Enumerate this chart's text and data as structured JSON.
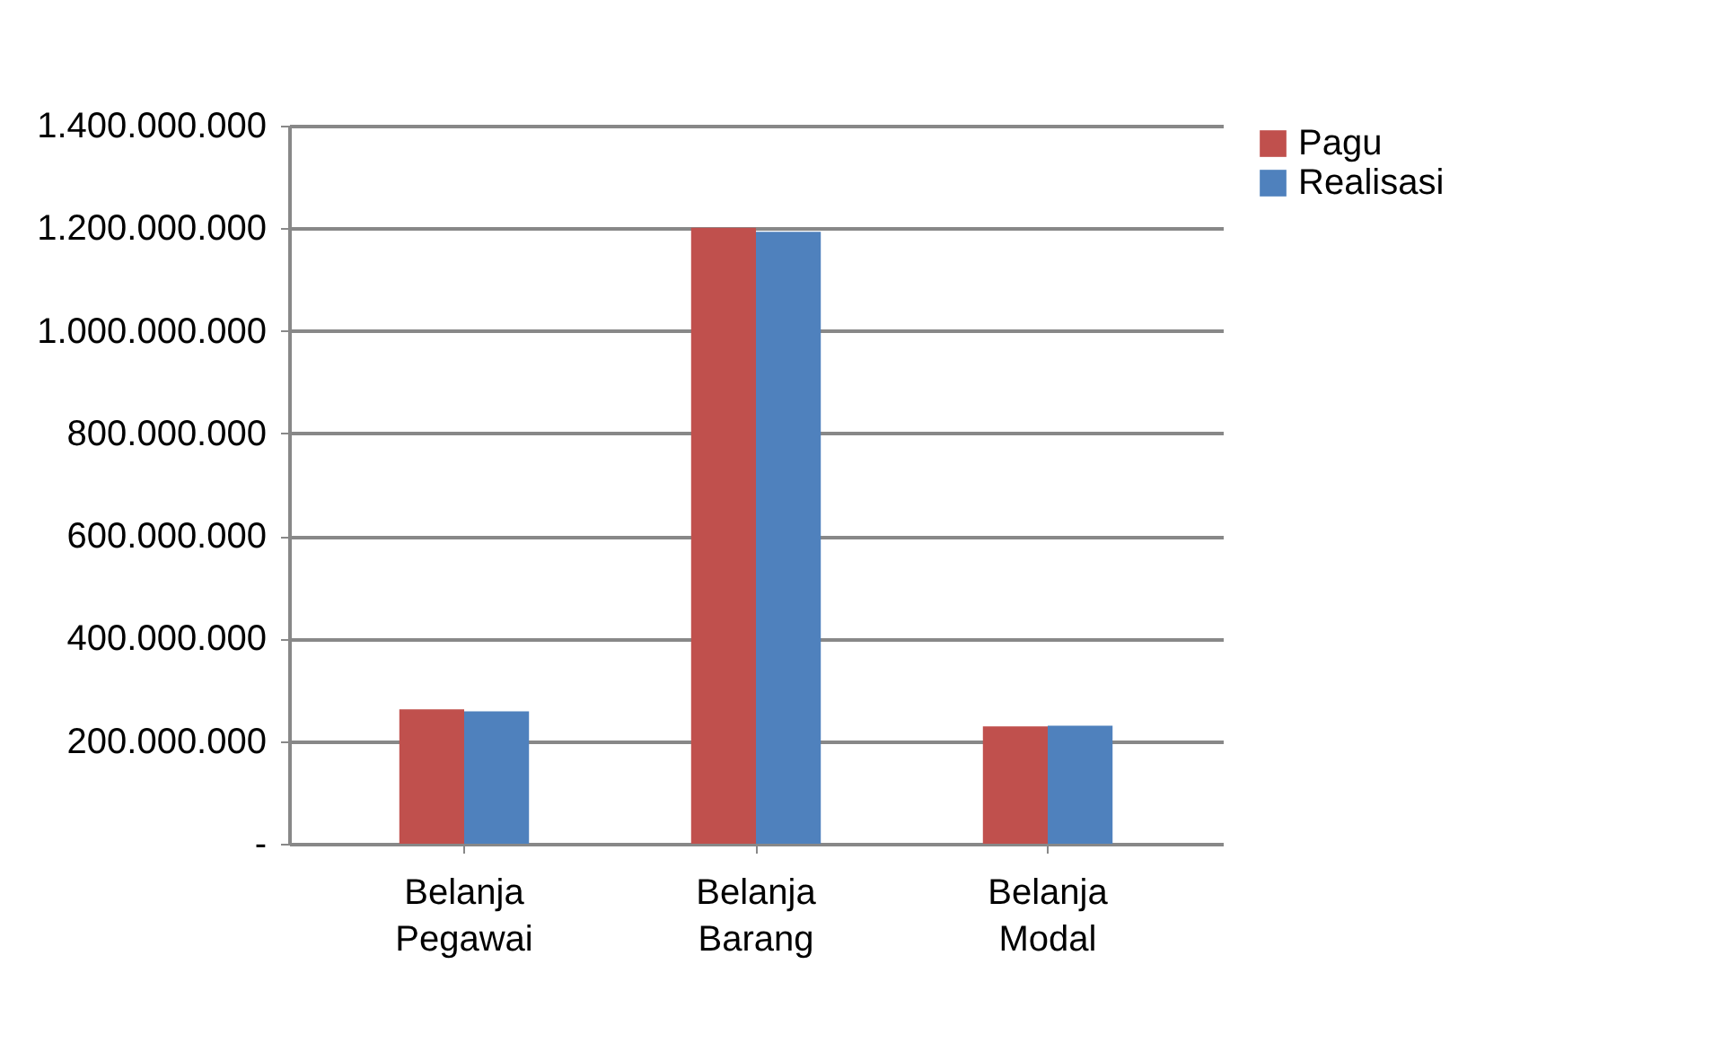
{
  "chart_data": {
    "type": "bar",
    "categories": [
      "Belanja Pegawai",
      "Belanja Barang",
      "Belanja Modal"
    ],
    "series": [
      {
        "name": "Pagu",
        "color": "#c0504d",
        "values": [
          262000000,
          1201000000,
          229000000
        ]
      },
      {
        "name": "Realisasi",
        "color": "#4f81bd",
        "values": [
          258000000,
          1193000000,
          230000000
        ]
      }
    ],
    "ylim": [
      0,
      1400000000
    ],
    "yticks": [
      {
        "value": 0,
        "label": "-"
      },
      {
        "value": 200000000,
        "label": "200.000.000"
      },
      {
        "value": 400000000,
        "label": "400.000.000"
      },
      {
        "value": 600000000,
        "label": "600.000.000"
      },
      {
        "value": 800000000,
        "label": "800.000.000"
      },
      {
        "value": 1000000000,
        "label": "1.000.000.000"
      },
      {
        "value": 1200000000,
        "label": "1.200.000.000"
      },
      {
        "value": 1400000000,
        "label": "1.400.000.000"
      }
    ],
    "grid": "y",
    "legend": "right"
  }
}
